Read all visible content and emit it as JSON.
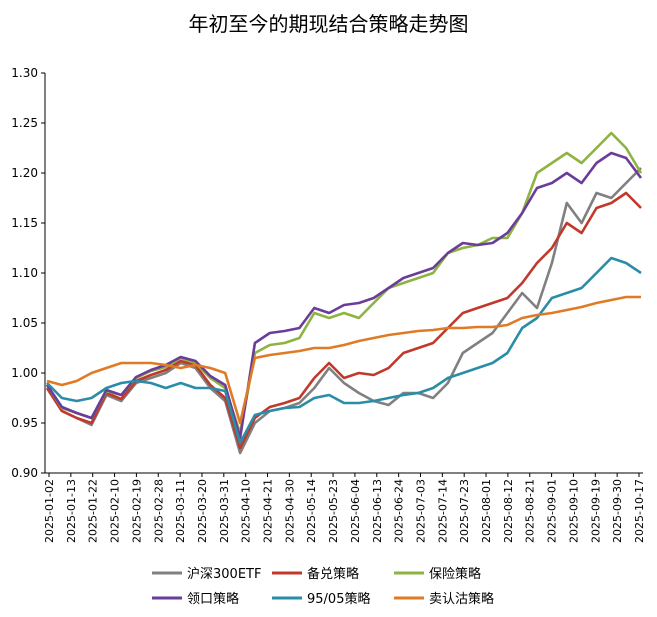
{
  "chart_data": {
    "type": "line",
    "title": "年初至今的期现结合策略走势图",
    "xlabel": "",
    "ylabel": "",
    "ylim": [
      0.9,
      1.3
    ],
    "yticks": [
      "0.90",
      "0.95",
      "1.00",
      "1.05",
      "1.10",
      "1.15",
      "1.20",
      "1.25",
      "1.30"
    ],
    "grid": false,
    "legend_position": "bottom",
    "x_tick_labels": [
      "2025-01-02",
      "2025-01-13",
      "2025-01-22",
      "2025-02-10",
      "2025-02-19",
      "2025-02-28",
      "2025-03-11",
      "2025-03-20",
      "2025-03-31",
      "2025-04-10",
      "2025-04-21",
      "2025-04-30",
      "2025-05-14",
      "2025-05-23",
      "2025-06-04",
      "2025-06-13",
      "2025-06-24",
      "2025-07-03",
      "2025-07-14",
      "2025-07-23",
      "2025-08-01",
      "2025-08-12",
      "2025-08-21",
      "2025-09-01",
      "2025-09-10",
      "2025-09-19",
      "2025-09-30",
      "2025-10-17"
    ],
    "series": [
      {
        "name": "沪深300ETF",
        "color": "#808080",
        "values": [
          0.985,
          0.962,
          0.955,
          0.948,
          0.978,
          0.972,
          0.99,
          0.995,
          1.0,
          1.01,
          1.005,
          0.985,
          0.972,
          0.92,
          0.95,
          0.962,
          0.965,
          0.97,
          0.985,
          1.005,
          0.99,
          0.98,
          0.972,
          0.968,
          0.98,
          0.98,
          0.975,
          0.99,
          1.02,
          1.03,
          1.04,
          1.06,
          1.08,
          1.065,
          1.11,
          1.17,
          1.15,
          1.18,
          1.175,
          1.19,
          1.205
        ]
      },
      {
        "name": "备兑策略",
        "color": "#C0392B",
        "values": [
          0.985,
          0.962,
          0.955,
          0.95,
          0.98,
          0.974,
          0.992,
          0.998,
          1.003,
          1.012,
          1.008,
          0.988,
          0.975,
          0.925,
          0.955,
          0.966,
          0.97,
          0.975,
          0.995,
          1.01,
          0.995,
          1.0,
          0.998,
          1.005,
          1.02,
          1.025,
          1.03,
          1.045,
          1.06,
          1.065,
          1.07,
          1.075,
          1.09,
          1.11,
          1.125,
          1.15,
          1.14,
          1.165,
          1.17,
          1.18,
          1.165
        ]
      },
      {
        "name": "保险策略",
        "color": "#8DB341",
        "values": [
          0.988,
          0.965,
          0.96,
          0.955,
          0.982,
          0.978,
          0.995,
          1.002,
          1.006,
          1.015,
          1.01,
          0.995,
          0.985,
          0.94,
          1.02,
          1.028,
          1.03,
          1.035,
          1.06,
          1.055,
          1.06,
          1.055,
          1.07,
          1.085,
          1.09,
          1.095,
          1.1,
          1.12,
          1.125,
          1.128,
          1.135,
          1.135,
          1.16,
          1.2,
          1.21,
          1.22,
          1.21,
          1.225,
          1.24,
          1.225,
          1.2
        ]
      },
      {
        "name": "领口策略",
        "color": "#6A3D9A",
        "values": [
          0.988,
          0.966,
          0.96,
          0.955,
          0.983,
          0.978,
          0.996,
          1.003,
          1.008,
          1.016,
          1.012,
          0.997,
          0.988,
          0.935,
          1.03,
          1.04,
          1.042,
          1.045,
          1.065,
          1.06,
          1.068,
          1.07,
          1.075,
          1.085,
          1.095,
          1.1,
          1.105,
          1.12,
          1.13,
          1.128,
          1.13,
          1.14,
          1.16,
          1.185,
          1.19,
          1.2,
          1.19,
          1.21,
          1.22,
          1.215,
          1.195
        ]
      },
      {
        "name": "95/05策略",
        "color": "#2A8DA8",
        "values": [
          0.99,
          0.975,
          0.972,
          0.975,
          0.985,
          0.99,
          0.992,
          0.99,
          0.985,
          0.99,
          0.985,
          0.985,
          0.982,
          0.93,
          0.958,
          0.962,
          0.965,
          0.966,
          0.975,
          0.978,
          0.97,
          0.97,
          0.972,
          0.975,
          0.978,
          0.98,
          0.985,
          0.995,
          1.0,
          1.005,
          1.01,
          1.02,
          1.045,
          1.055,
          1.075,
          1.08,
          1.085,
          1.1,
          1.115,
          1.11,
          1.1
        ]
      },
      {
        "name": "卖认沽策略",
        "color": "#E07B25",
        "values": [
          0.992,
          0.988,
          0.992,
          1.0,
          1.005,
          1.01,
          1.01,
          1.01,
          1.008,
          1.005,
          1.008,
          1.005,
          1.0,
          0.95,
          1.015,
          1.018,
          1.02,
          1.022,
          1.025,
          1.025,
          1.028,
          1.032,
          1.035,
          1.038,
          1.04,
          1.042,
          1.043,
          1.045,
          1.045,
          1.046,
          1.046,
          1.048,
          1.055,
          1.058,
          1.06,
          1.063,
          1.066,
          1.07,
          1.073,
          1.076,
          1.076
        ]
      }
    ]
  }
}
